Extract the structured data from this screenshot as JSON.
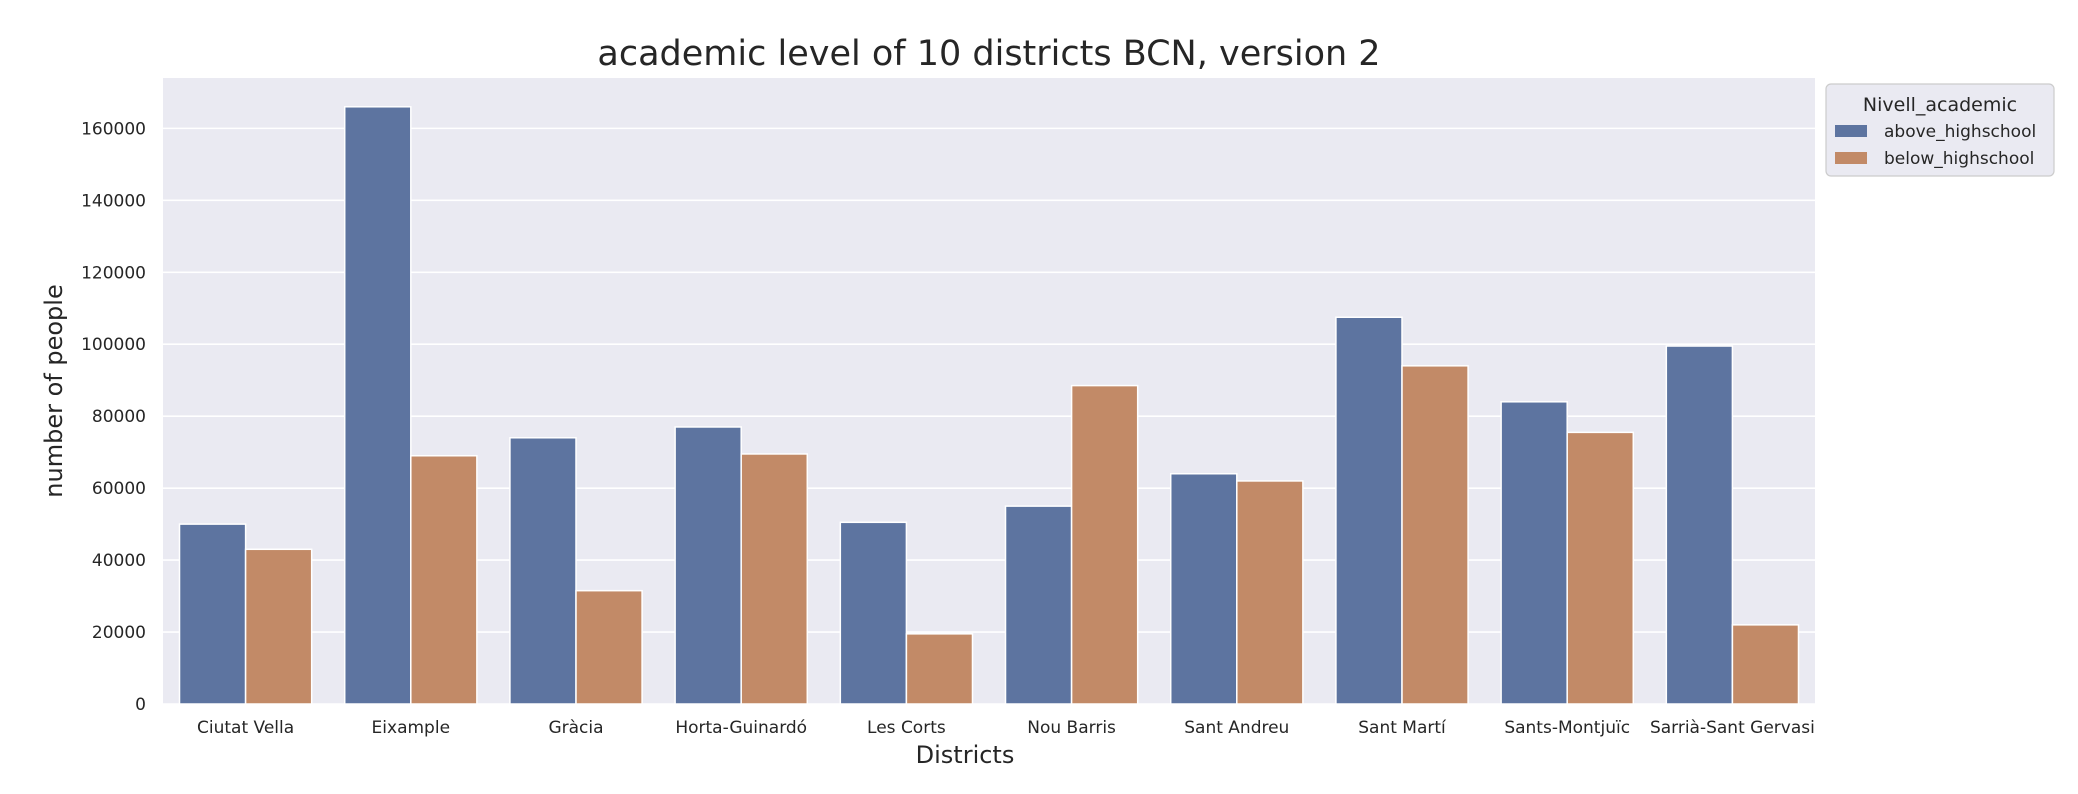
{
  "chart_data": {
    "type": "bar",
    "title": "academic level of 10 districts BCN, version 2",
    "xlabel": "Districts",
    "ylabel": "number of people",
    "categories": [
      "Ciutat Vella",
      "Eixample",
      "Gràcia",
      "Horta-Guinardó",
      "Les Corts",
      "Nou Barris",
      "Sant Andreu",
      "Sant Martí",
      "Sants-Montjuïc",
      "Sarrià-Sant Gervasi"
    ],
    "series": [
      {
        "name": "above_highschool",
        "values": [
          50000,
          166000,
          74000,
          77000,
          50500,
          55000,
          64000,
          107500,
          84000,
          99500
        ]
      },
      {
        "name": "below_highschool",
        "values": [
          43000,
          69000,
          31500,
          69500,
          19500,
          88500,
          62000,
          94000,
          75500,
          22000
        ]
      }
    ],
    "ylim": [
      0,
      174000
    ],
    "yticks": [
      0,
      20000,
      40000,
      60000,
      80000,
      100000,
      120000,
      140000,
      160000
    ],
    "grid": true,
    "legend": {
      "title": "Nivell_academic",
      "placement": "upper-right-outside"
    },
    "colors": {
      "above_highschool": "#5d74a0",
      "below_highschool": "#c28a67",
      "plot_background": "#eaeaf2",
      "grid": "#ffffff",
      "text": "#262626"
    }
  }
}
